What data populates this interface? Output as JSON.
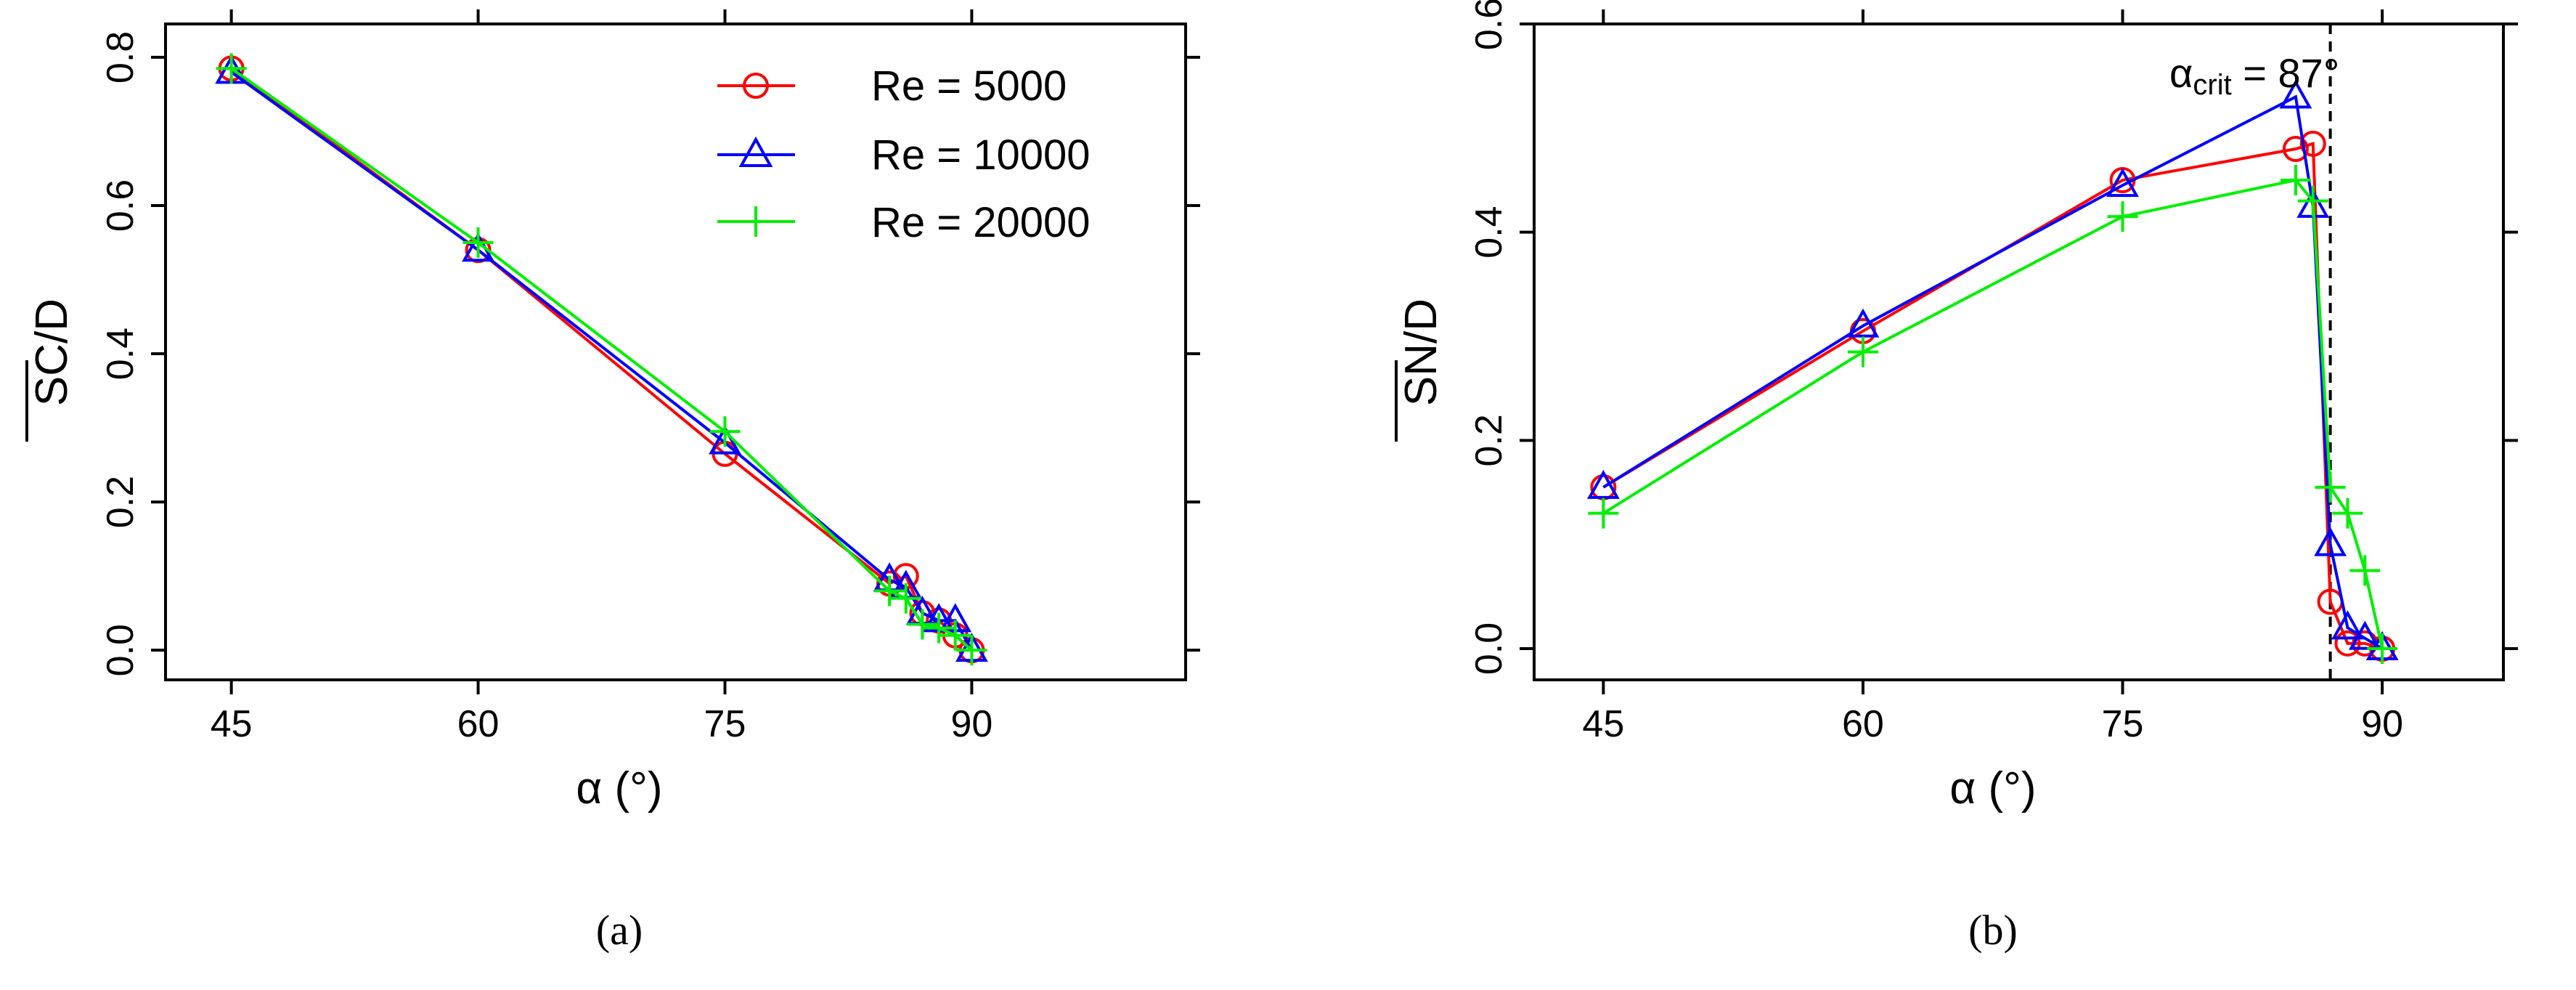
{
  "chart_data": [
    {
      "type": "line",
      "panel": "(a)",
      "xlabel": "α (°)",
      "ylabel_main": "SC",
      "ylabel_suffix": "/D",
      "xlim": [
        41,
        103
      ],
      "ylim": [
        -0.04,
        0.845
      ],
      "xticks": [
        45,
        60,
        75,
        90
      ],
      "xtick_labels": [
        "45",
        "60",
        "75",
        "90"
      ],
      "yticks": [
        0.0,
        0.2,
        0.4,
        0.6,
        0.8
      ],
      "ytick_labels": [
        "0.0",
        "0.2",
        "0.4",
        "0.6",
        "0.8"
      ],
      "legend": {
        "position": "top-right",
        "entries": [
          "Re = 5000",
          "Re = 10000",
          "Re = 20000"
        ]
      },
      "series": [
        {
          "name": "Re = 5000",
          "color": "#ff0000",
          "marker": "circle",
          "x": [
            45,
            60,
            75,
            85,
            86,
            87,
            88,
            89,
            90
          ],
          "y": [
            0.785,
            0.54,
            0.265,
            0.09,
            0.1,
            0.05,
            0.04,
            0.02,
            0.0
          ]
        },
        {
          "name": "Re = 10000",
          "color": "#0000ff",
          "marker": "triangle",
          "x": [
            45,
            60,
            75,
            85,
            86,
            87,
            88,
            89,
            90
          ],
          "y": [
            0.78,
            0.54,
            0.28,
            0.095,
            0.085,
            0.05,
            0.04,
            0.04,
            0.0
          ]
        },
        {
          "name": "Re = 20000",
          "color": "#00ee00",
          "marker": "plus",
          "x": [
            45,
            60,
            75,
            85,
            86,
            87,
            88,
            89,
            90
          ],
          "y": [
            0.785,
            0.55,
            0.295,
            0.08,
            0.07,
            0.035,
            0.03,
            0.02,
            0.0
          ]
        }
      ]
    },
    {
      "type": "line",
      "panel": "(b)",
      "xlabel": "α (°)",
      "ylabel_main": "SN",
      "ylabel_suffix": "/D",
      "xlim": [
        41,
        97
      ],
      "ylim": [
        -0.03,
        0.6
      ],
      "xticks": [
        45,
        60,
        75,
        90
      ],
      "xtick_labels": [
        "45",
        "60",
        "75",
        "90"
      ],
      "yticks": [
        0.0,
        0.2,
        0.4,
        0.6
      ],
      "ytick_labels": [
        "0.0",
        "0.2",
        "0.4",
        "0.6"
      ],
      "annotation": {
        "text_main": "α",
        "text_sub": "crit",
        "text_rest": " = 87°",
        "vline_x": 87
      },
      "series": [
        {
          "name": "Re = 5000",
          "color": "#ff0000",
          "marker": "circle",
          "x": [
            45,
            60,
            75,
            85,
            86,
            87,
            88,
            89,
            90
          ],
          "y": [
            0.155,
            0.305,
            0.45,
            0.48,
            0.485,
            0.045,
            0.005,
            0.005,
            0.0
          ]
        },
        {
          "name": "Re = 10000",
          "color": "#0000ff",
          "marker": "triangle",
          "x": [
            45,
            60,
            75,
            85,
            86,
            87,
            88,
            89,
            90
          ],
          "y": [
            0.155,
            0.31,
            0.445,
            0.53,
            0.425,
            0.1,
            0.02,
            0.01,
            0.0
          ]
        },
        {
          "name": "Re = 20000",
          "color": "#00ee00",
          "marker": "plus",
          "x": [
            45,
            60,
            75,
            85,
            86,
            87,
            88,
            89,
            90
          ],
          "y": [
            0.13,
            0.285,
            0.415,
            0.45,
            0.43,
            0.155,
            0.13,
            0.075,
            0.0
          ]
        }
      ]
    }
  ]
}
